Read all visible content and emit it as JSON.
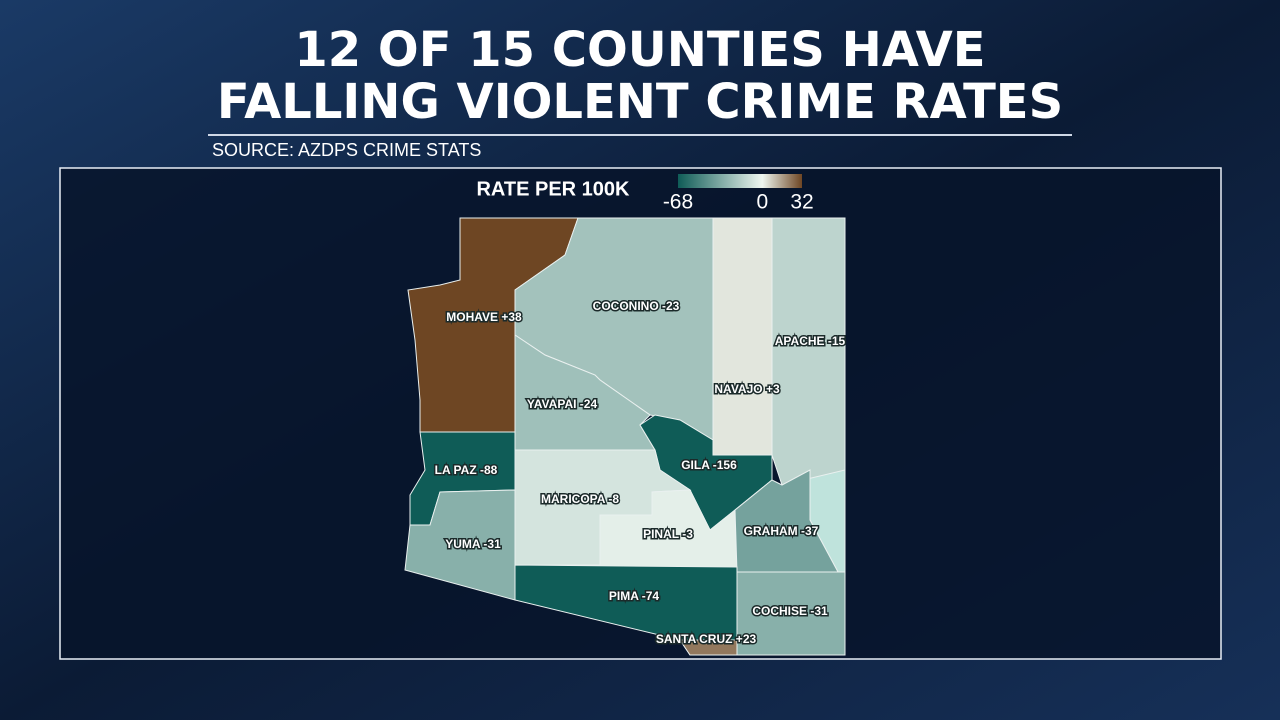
{
  "header": {
    "title_lines": [
      "12 OF 15 COUNTIES HAVE",
      "FALLING VIOLENT CRIME RATES"
    ],
    "source": "SOURCE: AZDPS CRIME STATS"
  },
  "legend": {
    "title": "RATE PER 100K",
    "range": [
      -68,
      32
    ],
    "ticks": [
      -68,
      0,
      32
    ]
  },
  "counties": [
    {
      "label": "MOHAVE +38",
      "value": 38
    },
    {
      "label": "COCONINO -23",
      "value": -23
    },
    {
      "label": "NAVAJO +3",
      "value": 3
    },
    {
      "label": "APACHE -15",
      "value": -15
    },
    {
      "label": "YAVAPAI -24",
      "value": -24
    },
    {
      "label": "GILA -156",
      "value": -156
    },
    {
      "label": "LA PAZ -88",
      "value": -88
    },
    {
      "label": "YUMA -31",
      "value": -31
    },
    {
      "label": "MARICOPA -8",
      "value": -8
    },
    {
      "label": "PINAL -3",
      "value": -3
    },
    {
      "label": "GRAHAM -37",
      "value": -37
    },
    {
      "label": "PIMA -74",
      "value": -74
    },
    {
      "label": "COCHISE -31",
      "value": -31
    },
    {
      "label": "SANTA CRUZ +23",
      "value": 23
    }
  ]
}
